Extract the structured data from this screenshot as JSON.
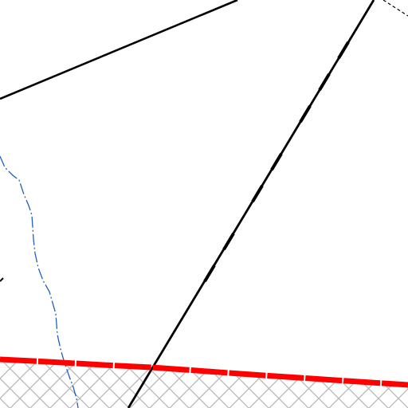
{
  "map": {
    "background_color": "#ffffff",
    "boundary_color": "#ff0000",
    "road_color": "#000000",
    "stream_color": "#1f5fbf",
    "hatch_color": "#b8b8b8",
    "hatch_pattern": "crosshatch"
  },
  "layers": [
    {
      "name": "road-line",
      "style": "solid",
      "color": "#000000"
    },
    {
      "name": "rail-line",
      "style": "solid-with-breaks",
      "color": "#000000"
    },
    {
      "name": "trail-line",
      "style": "dashed",
      "color": "#000000"
    },
    {
      "name": "stream-line",
      "style": "dash-dot",
      "color": "#1f5fbf"
    },
    {
      "name": "area-boundary",
      "style": "thick-solid",
      "color": "#ff0000"
    },
    {
      "name": "restricted-area",
      "style": "crosshatch",
      "color": "#b8b8b8"
    }
  ]
}
